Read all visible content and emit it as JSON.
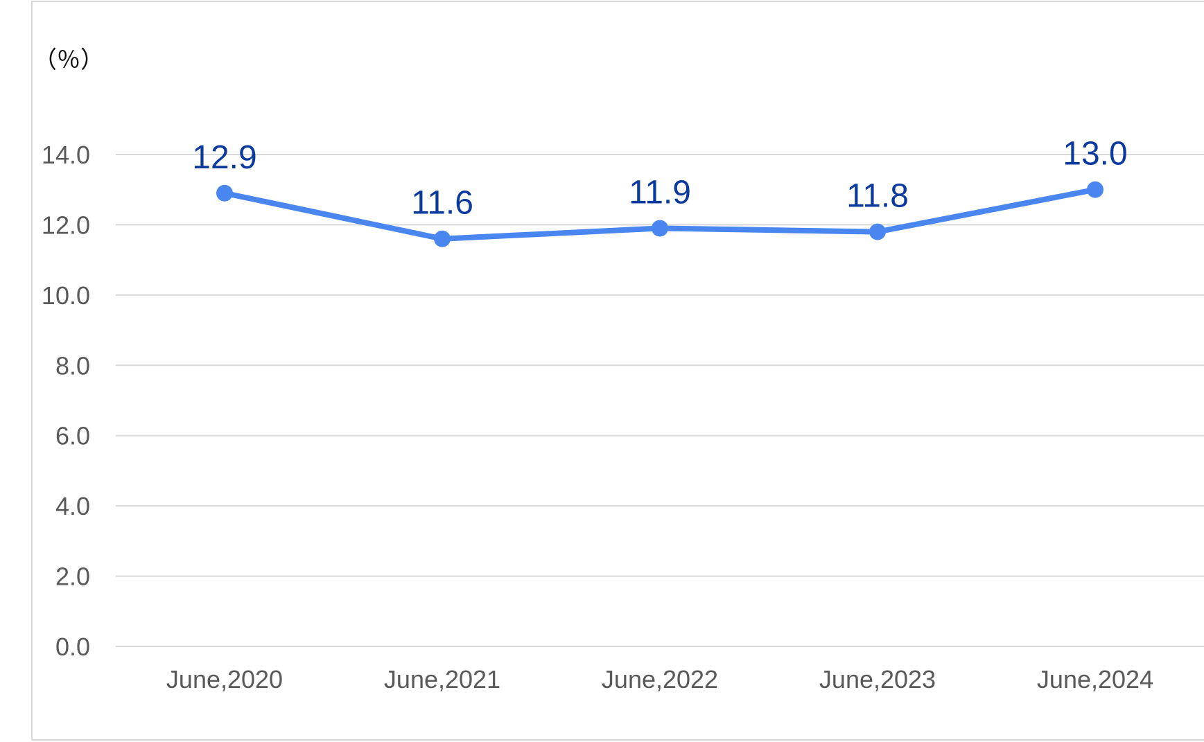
{
  "chart_data": {
    "type": "line",
    "unit_label": "（％）",
    "categories": [
      "June,2020",
      "June,2021",
      "June,2022",
      "June,2023",
      "June,2024"
    ],
    "series": [
      {
        "values": [
          12.9,
          11.6,
          11.9,
          11.8,
          13.0
        ]
      }
    ],
    "data_labels": [
      "12.9",
      "11.6",
      "11.9",
      "11.8",
      "13.0"
    ],
    "y_ticks": [
      "0.0",
      "2.0",
      "4.0",
      "6.0",
      "8.0",
      "10.0",
      "12.0",
      "14.0"
    ],
    "ylim": [
      0,
      14
    ],
    "grid": true,
    "legend": "none",
    "colors": {
      "line": "#4a86f0",
      "data_label": "#0b3a9e",
      "grid": "#d9d9d9",
      "tick": "#595959"
    }
  }
}
